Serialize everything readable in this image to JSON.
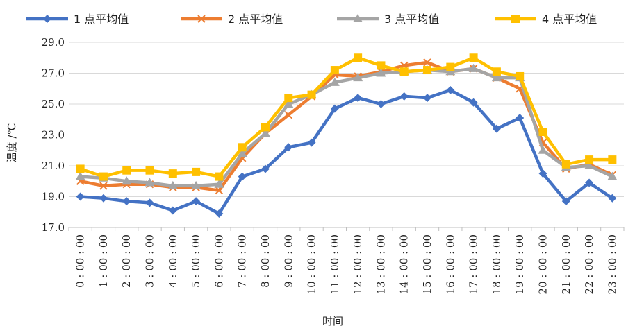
{
  "chart_data": {
    "type": "line",
    "xlabel": "时间",
    "ylabel": "温度 /℃",
    "ylim": [
      17.0,
      29.0
    ],
    "yticks": [
      "17.0",
      "19.0",
      "21.0",
      "23.0",
      "25.0",
      "27.0",
      "29.0"
    ],
    "grid": "horizontal",
    "legend_position": "top",
    "categories": [
      "0:00:00",
      "1:00:00",
      "2:00:00",
      "3:00:00",
      "4:00:00",
      "5:00:00",
      "6:00:00",
      "7:00:00",
      "8:00:00",
      "9:00:00",
      "10:00:00",
      "11:00:00",
      "12:00:00",
      "13:00:00",
      "14:00:00",
      "15:00:00",
      "16:00:00",
      "17:00:00",
      "18:00:00",
      "19:00:00",
      "20:00:00",
      "21:00:00",
      "22:00:00",
      "23:00:00"
    ],
    "series": [
      {
        "name": "1 点平均值",
        "color": "#4472C4",
        "marker": "diamond",
        "values": [
          19.0,
          18.9,
          18.7,
          18.6,
          18.1,
          18.7,
          17.9,
          20.3,
          20.8,
          22.2,
          22.5,
          24.7,
          25.4,
          25.0,
          25.5,
          25.4,
          25.9,
          25.1,
          23.4,
          24.1,
          20.5,
          18.7,
          19.9,
          18.9
        ]
      },
      {
        "name": "2 点平均值",
        "color": "#ED7D31",
        "marker": "x",
        "values": [
          20.0,
          19.7,
          19.8,
          19.8,
          19.6,
          19.6,
          19.4,
          21.5,
          23.1,
          24.3,
          25.5,
          26.9,
          26.8,
          27.1,
          27.5,
          27.7,
          27.1,
          27.3,
          26.7,
          26.0,
          22.5,
          20.8,
          21.1,
          20.4
        ]
      },
      {
        "name": "3 点平均值",
        "color": "#A5A5A5",
        "marker": "triangle",
        "values": [
          20.3,
          20.2,
          20.0,
          19.9,
          19.7,
          19.7,
          19.8,
          21.8,
          23.1,
          25.0,
          25.6,
          26.4,
          26.7,
          27.0,
          27.1,
          27.2,
          27.1,
          27.3,
          26.7,
          26.7,
          22.0,
          20.9,
          21.0,
          20.3
        ]
      },
      {
        "name": "4 点平均值",
        "color": "#FFC000",
        "marker": "square",
        "values": [
          20.8,
          20.3,
          20.7,
          20.7,
          20.5,
          20.6,
          20.3,
          22.2,
          23.5,
          25.4,
          25.6,
          27.2,
          28.0,
          27.5,
          27.1,
          27.2,
          27.4,
          28.0,
          27.1,
          26.8,
          23.2,
          21.1,
          21.4,
          21.4
        ]
      }
    ]
  }
}
